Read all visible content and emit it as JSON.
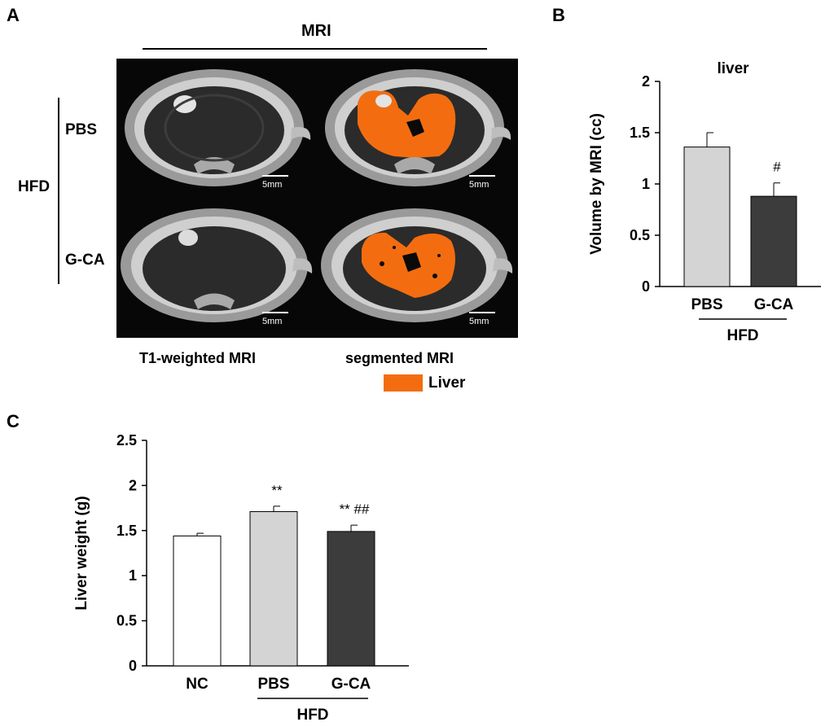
{
  "panel_labels": {
    "a": "A",
    "b": "B",
    "c": "C"
  },
  "panel_a": {
    "header": "MRI",
    "group": "HFD",
    "rows": [
      "PBS",
      "G-CA"
    ],
    "columns": [
      "T1-weighted MRI",
      "segmented MRI"
    ],
    "scale_bar": "5mm",
    "legend_label": "Liver",
    "colors": {
      "liver": "#f36d10",
      "background": "#070707",
      "tissue": "#c9c9c9"
    }
  },
  "chart_data": [
    {
      "id": "panel-b",
      "type": "bar",
      "title": "liver",
      "ylabel": "Volume by MRI (cc)",
      "xlabel": "",
      "categories": [
        "PBS",
        "G-CA"
      ],
      "values": [
        1.36,
        0.88
      ],
      "errors": [
        0.14,
        0.13
      ],
      "annotations": [
        "",
        "#"
      ],
      "ylim": [
        0,
        2
      ],
      "yticks": [
        0,
        0.5,
        1,
        1.5,
        2
      ],
      "ytick_labels": [
        "0",
        "0.5",
        "1",
        "1.5",
        "2"
      ],
      "group_label": "HFD",
      "bar_colors": [
        "#d4d4d4",
        "#3c3c3c"
      ],
      "grid": false
    },
    {
      "id": "panel-c",
      "type": "bar",
      "title": "",
      "ylabel": "Liver weight (g)",
      "xlabel": "",
      "categories": [
        "NC",
        "PBS",
        "G-CA"
      ],
      "values": [
        1.44,
        1.71,
        1.49
      ],
      "errors": [
        0.03,
        0.06,
        0.07
      ],
      "annotations": [
        "",
        "**",
        "** ##"
      ],
      "ylim": [
        0,
        2.5
      ],
      "yticks": [
        0,
        0.5,
        1,
        1.5,
        2,
        2.5
      ],
      "ytick_labels": [
        "0",
        "0.5",
        "1",
        "1.5",
        "2",
        "2.5"
      ],
      "group_label": "HFD",
      "bar_colors": [
        "#ffffff",
        "#d4d4d4",
        "#3c3c3c"
      ],
      "grid": false
    }
  ]
}
